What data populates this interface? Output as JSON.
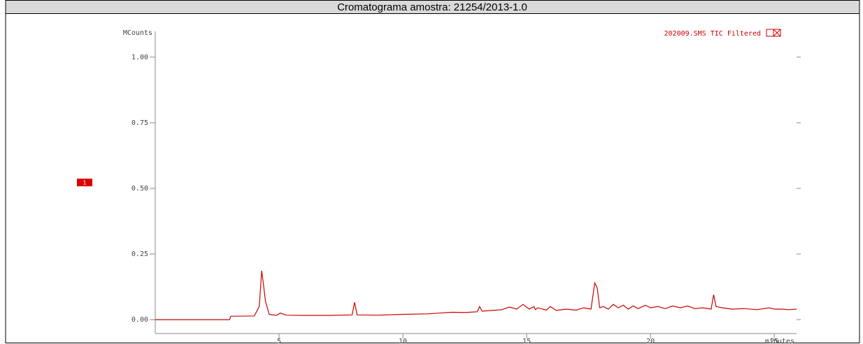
{
  "chart_data": {
    "type": "line",
    "title": "Cromatograma amostra: 21254/2013-1.0",
    "y_label": "MCounts",
    "x_label": "minutes",
    "trace_marker": "1",
    "xlim": [
      0,
      25.9
    ],
    "ylim": [
      -0.053,
      1.098
    ],
    "xticks": [
      5,
      10,
      15,
      20,
      25
    ],
    "yticks": [
      {
        "value": 0,
        "label": "0.00"
      },
      {
        "value": 0.25,
        "label": "0.25"
      },
      {
        "value": 0.5,
        "label": "0.50"
      },
      {
        "value": 0.75,
        "label": "0.75"
      },
      {
        "value": 1,
        "label": "1.00"
      }
    ],
    "legend_position": "upper right",
    "x": [
      0,
      3.0,
      3.05,
      4.0,
      4.2,
      4.3,
      4.35,
      4.45,
      4.6,
      4.9,
      5.05,
      5.3,
      6,
      7,
      7.95,
      8.05,
      8.15,
      9,
      10,
      11,
      12,
      12.5,
      13.0,
      13.1,
      13.2,
      13.6,
      14.0,
      14.3,
      14.6,
      14.85,
      15.1,
      15.3,
      15.35,
      15.45,
      15.8,
      15.95,
      16.2,
      16.6,
      17.0,
      17.3,
      17.6,
      17.75,
      17.85,
      17.95,
      18.1,
      18.3,
      18.5,
      18.7,
      18.9,
      19.1,
      19.3,
      19.5,
      19.8,
      20.0,
      20.3,
      20.6,
      20.9,
      21.2,
      21.5,
      21.8,
      22.1,
      22.45,
      22.55,
      22.65,
      22.9,
      23.3,
      23.8,
      24.3,
      24.8,
      25.0,
      25.3,
      25.6,
      25.9
    ],
    "series": [
      {
        "name": "202009.SMS TIC Filtered",
        "color": "#cc0000",
        "values": [
          0.0,
          0.0,
          0.013,
          0.014,
          0.05,
          0.186,
          0.15,
          0.07,
          0.02,
          0.016,
          0.025,
          0.017,
          0.016,
          0.016,
          0.018,
          0.066,
          0.018,
          0.017,
          0.02,
          0.022,
          0.028,
          0.027,
          0.03,
          0.05,
          0.032,
          0.035,
          0.038,
          0.048,
          0.04,
          0.058,
          0.04,
          0.05,
          0.038,
          0.045,
          0.036,
          0.05,
          0.035,
          0.04,
          0.036,
          0.045,
          0.04,
          0.14,
          0.12,
          0.045,
          0.05,
          0.04,
          0.058,
          0.045,
          0.055,
          0.04,
          0.052,
          0.042,
          0.055,
          0.045,
          0.05,
          0.042,
          0.052,
          0.045,
          0.052,
          0.042,
          0.045,
          0.04,
          0.095,
          0.05,
          0.045,
          0.04,
          0.042,
          0.038,
          0.045,
          0.04,
          0.04,
          0.038,
          0.04
        ]
      }
    ]
  }
}
